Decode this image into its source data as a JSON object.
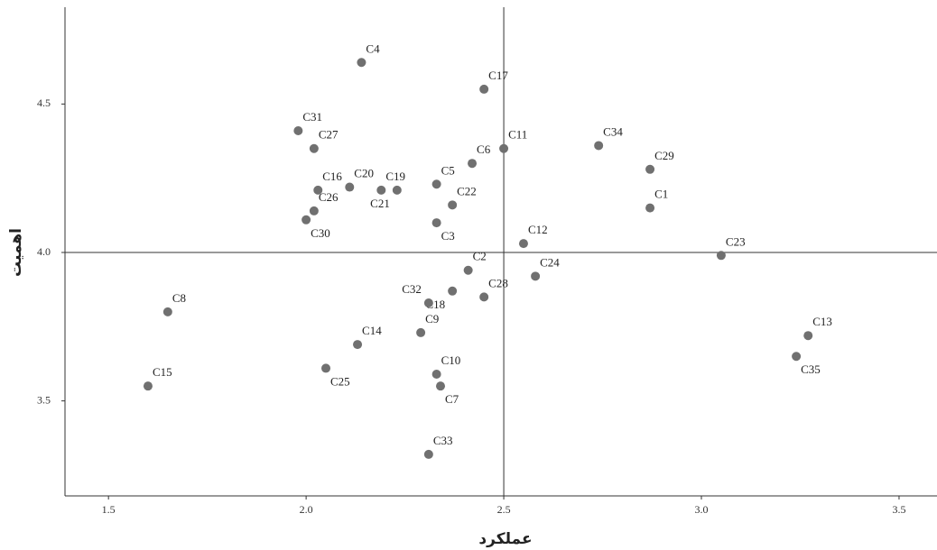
{
  "chart_data": {
    "type": "scatter",
    "x_label": "عملکرد",
    "y_label": "اهمیت",
    "point_labels": [
      "C4",
      "C17",
      "C31",
      "C27",
      "C11",
      "C34",
      "C29",
      "C6",
      "C5",
      "C16",
      "C20",
      "C19",
      "C21",
      "C22",
      "C1",
      "C26",
      "C30",
      "C3",
      "C12",
      "C23",
      "C2",
      "C24",
      "C28",
      "C18",
      "C32",
      "C8",
      "C9",
      "C13",
      "C14",
      "C35",
      "C25",
      "C10",
      "C7",
      "C15",
      "C33"
    ],
    "x": [
      2.14,
      2.45,
      1.98,
      2.02,
      2.5,
      2.74,
      2.87,
      2.42,
      2.33,
      2.03,
      2.11,
      2.19,
      2.23,
      2.37,
      2.87,
      2.02,
      2.0,
      2.33,
      2.55,
      3.05,
      2.41,
      2.58,
      2.45,
      2.37,
      2.31,
      1.65,
      2.29,
      3.27,
      2.13,
      3.24,
      2.05,
      2.33,
      2.34,
      1.6,
      2.31
    ],
    "series": [
      {
        "color": "#707070",
        "values": [
          4.64,
          4.55,
          4.41,
          4.35,
          4.35,
          4.36,
          4.28,
          4.3,
          4.23,
          4.21,
          4.22,
          4.21,
          4.21,
          4.16,
          4.15,
          4.14,
          4.11,
          4.1,
          4.03,
          3.99,
          3.94,
          3.92,
          3.85,
          3.87,
          3.83,
          3.8,
          3.73,
          3.72,
          3.69,
          3.65,
          3.61,
          3.59,
          3.55,
          3.55,
          3.32
        ]
      }
    ],
    "xlim": [
      1.39,
      3.596
    ],
    "ylim": [
      3.18,
      4.82
    ],
    "xticks": [
      1.5,
      {
        "value": 2,
        "label": "2.0"
      },
      2.5,
      {
        "value": 3,
        "label": "3.0"
      },
      3.5
    ],
    "yticks": [
      3.5,
      {
        "value": 4,
        "label": "4.0"
      },
      4.5
    ],
    "reference_lines": {
      "x": 2.5,
      "y": 4
    }
  }
}
